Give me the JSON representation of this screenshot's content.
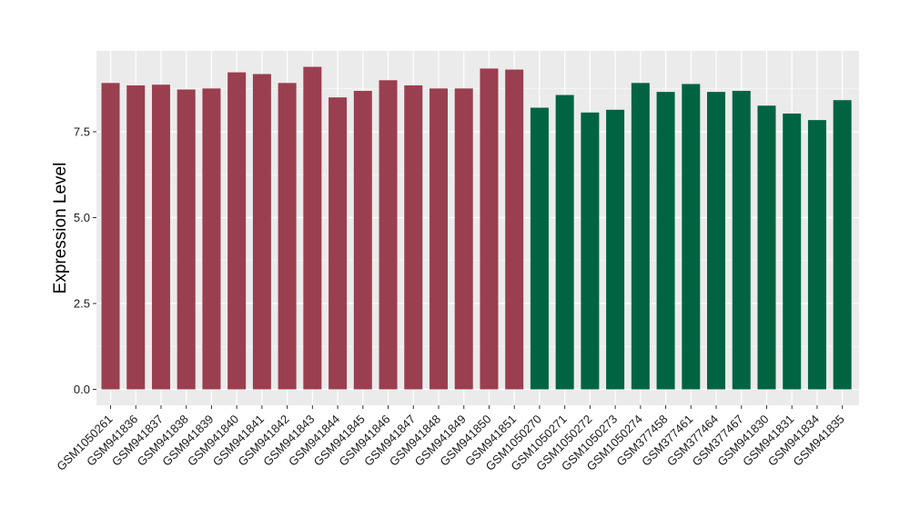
{
  "chart_data": {
    "type": "bar",
    "title": "",
    "xlabel": "",
    "ylabel": "Expression Level",
    "ylim": [
      0,
      9.9
    ],
    "yticks": [
      0.0,
      2.5,
      5.0,
      7.5
    ],
    "ytick_labels": [
      "0.0",
      "2.5",
      "5.0",
      "7.5"
    ],
    "grid": true,
    "legend": "none",
    "colors": {
      "group1": "#9a3f4f",
      "group2": "#006442",
      "panel": "#ebebeb",
      "grid": "#ffffff"
    },
    "categories": [
      "GSM1050261",
      "GSM941836",
      "GSM941837",
      "GSM941838",
      "GSM941839",
      "GSM941840",
      "GSM941841",
      "GSM941842",
      "GSM941843",
      "GSM941844",
      "GSM941845",
      "GSM941846",
      "GSM941847",
      "GSM941848",
      "GSM941849",
      "GSM941850",
      "GSM941851",
      "GSM1050270",
      "GSM1050271",
      "GSM1050272",
      "GSM1050273",
      "GSM1050274",
      "GSM377458",
      "GSM377461",
      "GSM377464",
      "GSM377467",
      "GSM941830",
      "GSM941831",
      "GSM941834",
      "GSM941835"
    ],
    "values": [
      8.92,
      8.85,
      8.87,
      8.73,
      8.76,
      9.23,
      9.18,
      8.92,
      9.39,
      8.5,
      8.69,
      9.0,
      8.85,
      8.76,
      8.76,
      9.34,
      9.31,
      8.2,
      8.57,
      8.06,
      8.14,
      8.92,
      8.66,
      8.89,
      8.66,
      8.69,
      8.26,
      8.03,
      7.84,
      8.42
    ],
    "groups": [
      "group1",
      "group1",
      "group1",
      "group1",
      "group1",
      "group1",
      "group1",
      "group1",
      "group1",
      "group1",
      "group1",
      "group1",
      "group1",
      "group1",
      "group1",
      "group1",
      "group1",
      "group2",
      "group2",
      "group2",
      "group2",
      "group2",
      "group2",
      "group2",
      "group2",
      "group2",
      "group2",
      "group2",
      "group2",
      "group2"
    ]
  }
}
